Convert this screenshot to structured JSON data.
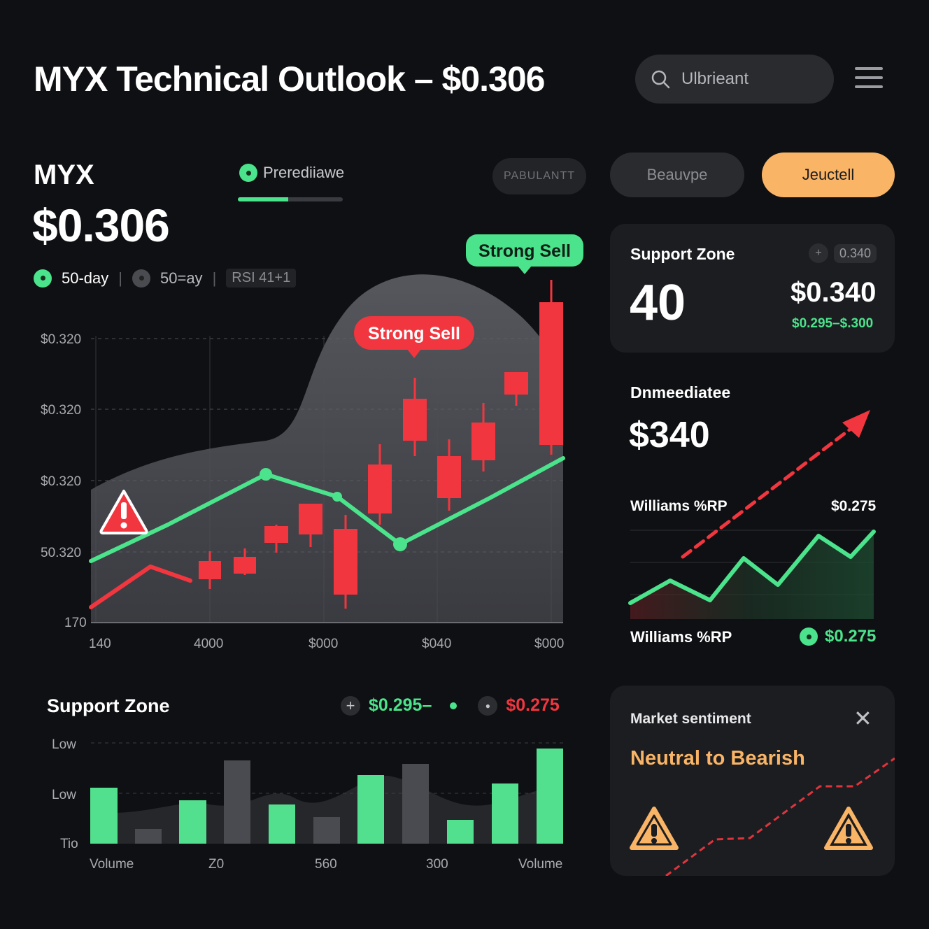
{
  "header": {
    "title": "MYX Technical Outlook – $0.306",
    "search_placeholder": "Ulbrieant"
  },
  "asset": {
    "ticker": "MYX",
    "price": "$0.306"
  },
  "prediction_tab": {
    "label": "Prerediiawe",
    "progress": 0.48
  },
  "pills": {
    "pill1": "PABULANTT",
    "pill2": "Beauvpe",
    "pill3": "Jeuctell"
  },
  "legend": {
    "item1": "50-day",
    "item2": "50=ay",
    "item3": "RSI 41+1"
  },
  "main_chart": {
    "y_labels": [
      "$0.320",
      "$0.320",
      "$0.320",
      "50.320",
      "170"
    ],
    "x_labels": [
      "140",
      "4000",
      "$000",
      "$040",
      "$000"
    ],
    "callout_red": "Strong Sell",
    "callout_green": "Strong Sell"
  },
  "support_card": {
    "title": "Support Zone",
    "chip_value": "0.340",
    "big_value": "40",
    "price": "$0.340",
    "range": "$0.295–$.300"
  },
  "immediate": {
    "title": "Dnmeediatee",
    "value": "$340"
  },
  "williams": {
    "label_top": "Williams %RP",
    "value_top": "$0.275",
    "label_bottom": "Williams %RP",
    "value_bottom": "$0.275"
  },
  "volume_panel": {
    "title": "Support Zone",
    "green_value": "$0.295–",
    "red_value": "$0.275",
    "y_labels": [
      "Low",
      "Low",
      "Tio"
    ],
    "x_labels": [
      "Volume",
      "Z0",
      "560",
      "300",
      "Volume"
    ]
  },
  "sentiment": {
    "title": "Market sentiment",
    "value": "Neutral to Bearish"
  },
  "colors": {
    "bg": "#0f1013",
    "green": "#4be38b",
    "red": "#f2363f",
    "orange": "#f9b466",
    "card": "#1c1d21"
  }
}
